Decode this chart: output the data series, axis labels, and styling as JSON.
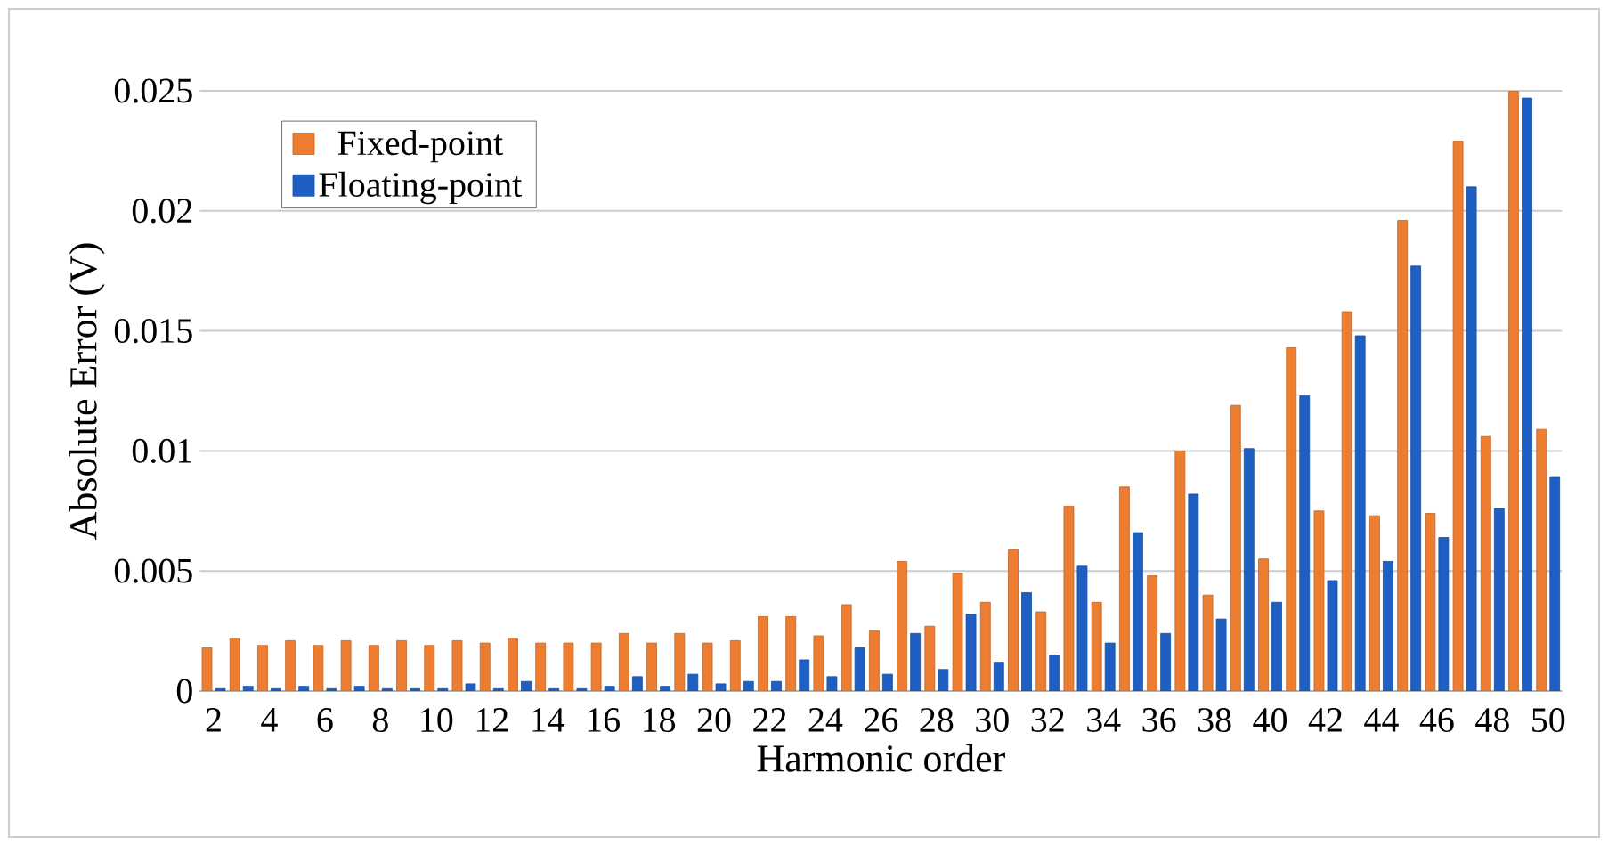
{
  "chart_data": {
    "type": "bar",
    "xlabel": "Harmonic order",
    "ylabel": "Absolute Error (V)",
    "categories": [
      "2",
      null,
      "4",
      null,
      "6",
      null,
      "8",
      null,
      "10",
      null,
      "12",
      null,
      "14",
      null,
      "16",
      null,
      "18",
      null,
      "20",
      null,
      "22",
      null,
      "24",
      null,
      "26",
      null,
      "28",
      null,
      "30",
      null,
      "32",
      null,
      "34",
      null,
      "36",
      null,
      "38",
      null,
      "40",
      null,
      "42",
      null,
      "44",
      null,
      "46",
      null,
      "48",
      null,
      "50"
    ],
    "series": [
      {
        "name": "Fixed-point",
        "color": "#ed7d31",
        "values": [
          0.0018,
          0.0022,
          0.0019,
          0.0021,
          0.0019,
          0.0021,
          0.0019,
          0.0021,
          0.0019,
          0.0021,
          0.002,
          0.0022,
          0.002,
          0.002,
          0.002,
          0.0024,
          0.002,
          0.0024,
          0.002,
          0.0021,
          0.0031,
          0.0031,
          0.0023,
          0.0036,
          0.0025,
          0.0054,
          0.0027,
          0.0049,
          0.0037,
          0.0059,
          0.0033,
          0.0077,
          0.0037,
          0.0085,
          0.0048,
          0.01,
          0.004,
          0.0119,
          0.0055,
          0.0143,
          0.0075,
          0.0158,
          0.0073,
          0.0196,
          0.0074,
          0.0229,
          0.0106,
          0.025,
          0.0109
        ]
      },
      {
        "name": "Floating-point",
        "color": "#1f5fc4",
        "values": [
          0.0001,
          0.0002,
          0.0001,
          0.0002,
          0.0001,
          0.0002,
          0.0001,
          0.0001,
          0.0001,
          0.0003,
          0.0001,
          0.0004,
          0.0001,
          0.0001,
          0.0002,
          0.0006,
          0.0002,
          0.0007,
          0.0003,
          0.0004,
          0.0004,
          0.0013,
          0.0006,
          0.0018,
          0.0007,
          0.0024,
          0.0009,
          0.0032,
          0.0012,
          0.0041,
          0.0015,
          0.0052,
          0.002,
          0.0066,
          0.0024,
          0.0082,
          0.003,
          0.0101,
          0.0037,
          0.0123,
          0.0046,
          0.0148,
          0.0054,
          0.0177,
          0.0064,
          0.021,
          0.0076,
          0.0247,
          0.0089
        ]
      }
    ],
    "ylim": [
      0,
      0.025
    ],
    "yticks": [
      0,
      0.005,
      0.01,
      0.015,
      0.02,
      0.025
    ],
    "grid": "y",
    "legend": "top left"
  }
}
